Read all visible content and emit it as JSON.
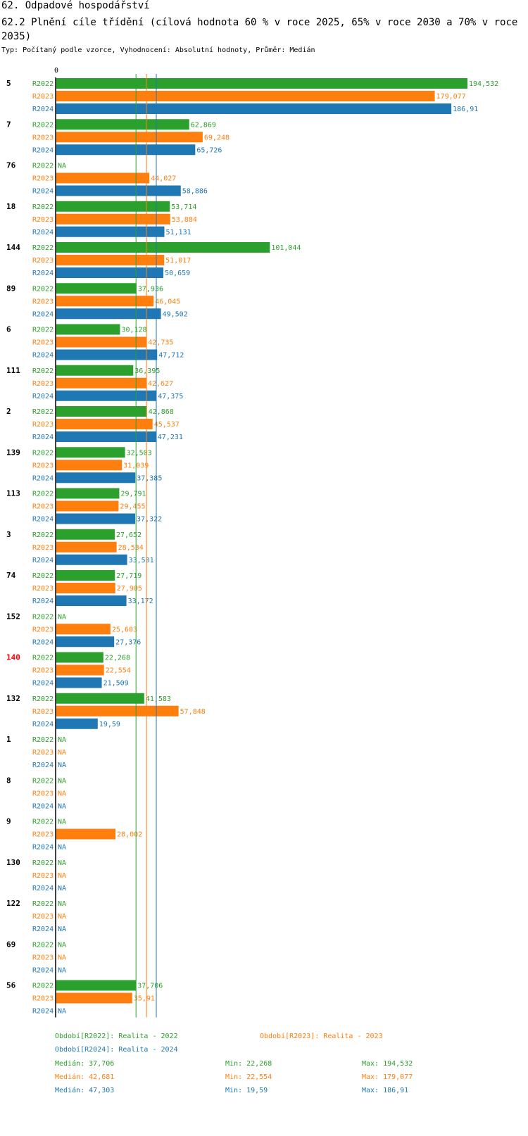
{
  "title": "62. Odpadové hospodářství",
  "subtitle": "62.2 Plnění cíle třídění (cílová hodnota 60 % v roce 2025, 65% v roce 2030 a 70% v roce 2035)",
  "info": "Typ: Počítaný podle vzorce, Vyhodnocení: Absolutní hodnoty, Průměr: Medián",
  "colors": {
    "R2022": "#2ca02c",
    "R2023": "#ff7f0e",
    "R2024": "#1f77b4",
    "highlight": "#ff0000"
  },
  "chart_data": {
    "type": "bar",
    "orientation": "horizontal",
    "axis_zero_label": "0",
    "xlim": [
      0,
      194.532
    ],
    "series_names": [
      "R2022",
      "R2023",
      "R2024"
    ],
    "medians": [
      37.706,
      42.681,
      47.303
    ],
    "groups": [
      {
        "label": "5",
        "highlight": false,
        "values": [
          194.532,
          179.077,
          186.91
        ],
        "labels": [
          "194,532",
          "179,077",
          "186,91"
        ]
      },
      {
        "label": "7",
        "highlight": false,
        "values": [
          62.869,
          69.248,
          65.726
        ],
        "labels": [
          "62,869",
          "69,248",
          "65,726"
        ]
      },
      {
        "label": "76",
        "highlight": false,
        "values": [
          null,
          44.027,
          58.886
        ],
        "labels": [
          "NA",
          "44,027",
          "58,886"
        ]
      },
      {
        "label": "18",
        "highlight": false,
        "values": [
          53.714,
          53.884,
          51.131
        ],
        "labels": [
          "53,714",
          "53,884",
          "51,131"
        ]
      },
      {
        "label": "144",
        "highlight": false,
        "values": [
          101.044,
          51.017,
          50.659
        ],
        "labels": [
          "101,044",
          "51,017",
          "50,659"
        ]
      },
      {
        "label": "89",
        "highlight": false,
        "values": [
          37.936,
          46.045,
          49.502
        ],
        "labels": [
          "37,936",
          "46,045",
          "49,502"
        ]
      },
      {
        "label": "6",
        "highlight": false,
        "values": [
          30.128,
          42.735,
          47.712
        ],
        "labels": [
          "30,128",
          "42,735",
          "47,712"
        ]
      },
      {
        "label": "111",
        "highlight": false,
        "values": [
          36.395,
          42.627,
          47.375
        ],
        "labels": [
          "36,395",
          "42,627",
          "47,375"
        ]
      },
      {
        "label": "2",
        "highlight": false,
        "values": [
          42.868,
          45.537,
          47.231
        ],
        "labels": [
          "42,868",
          "45,537",
          "47,231"
        ]
      },
      {
        "label": "139",
        "highlight": false,
        "values": [
          32.503,
          31.039,
          37.385
        ],
        "labels": [
          "32,503",
          "31,039",
          "37,385"
        ]
      },
      {
        "label": "113",
        "highlight": false,
        "values": [
          29.791,
          29.455,
          37.322
        ],
        "labels": [
          "29,791",
          "29,455",
          "37,322"
        ]
      },
      {
        "label": "3",
        "highlight": false,
        "values": [
          27.652,
          28.534,
          33.501
        ],
        "labels": [
          "27,652",
          "28,534",
          "33,501"
        ]
      },
      {
        "label": "74",
        "highlight": false,
        "values": [
          27.719,
          27.905,
          33.172
        ],
        "labels": [
          "27,719",
          "27,905",
          "33,172"
        ]
      },
      {
        "label": "152",
        "highlight": false,
        "values": [
          null,
          25.603,
          27.376
        ],
        "labels": [
          "NA",
          "25,603",
          "27,376"
        ]
      },
      {
        "label": "140",
        "highlight": true,
        "values": [
          22.268,
          22.554,
          21.509
        ],
        "labels": [
          "22,268",
          "22,554",
          "21,509"
        ]
      },
      {
        "label": "132",
        "highlight": false,
        "values": [
          41.583,
          57.848,
          19.59
        ],
        "labels": [
          "41,583",
          "57,848",
          "19,59"
        ]
      },
      {
        "label": "1",
        "highlight": false,
        "values": [
          null,
          null,
          null
        ],
        "labels": [
          "NA",
          "NA",
          "NA"
        ]
      },
      {
        "label": "8",
        "highlight": false,
        "values": [
          null,
          null,
          null
        ],
        "labels": [
          "NA",
          "NA",
          "NA"
        ]
      },
      {
        "label": "9",
        "highlight": false,
        "values": [
          null,
          28.002,
          null
        ],
        "labels": [
          "NA",
          "28,002",
          "NA"
        ]
      },
      {
        "label": "130",
        "highlight": false,
        "values": [
          null,
          null,
          null
        ],
        "labels": [
          "NA",
          "NA",
          "NA"
        ]
      },
      {
        "label": "122",
        "highlight": false,
        "values": [
          null,
          null,
          null
        ],
        "labels": [
          "NA",
          "NA",
          "NA"
        ]
      },
      {
        "label": "69",
        "highlight": false,
        "values": [
          null,
          null,
          null
        ],
        "labels": [
          "NA",
          "NA",
          "NA"
        ]
      },
      {
        "label": "56",
        "highlight": false,
        "values": [
          37.706,
          35.91,
          null
        ],
        "labels": [
          "37,706",
          "35,91",
          "NA"
        ]
      }
    ]
  },
  "legend": {
    "series": [
      "Období[R2022]: Realita - 2022",
      "Období[R2023]: Realita - 2023",
      "Období[R2024]: Realita - 2024"
    ],
    "stats": [
      {
        "median": "Medián: 37,706",
        "min": "Min: 22,268",
        "max": "Max: 194,532"
      },
      {
        "median": "Medián: 42,681",
        "min": "Min: 22,554",
        "max": "Max: 179,077"
      },
      {
        "median": "Medián: 47,303",
        "min": "Min: 19,59",
        "max": "Max: 186,91"
      }
    ]
  }
}
